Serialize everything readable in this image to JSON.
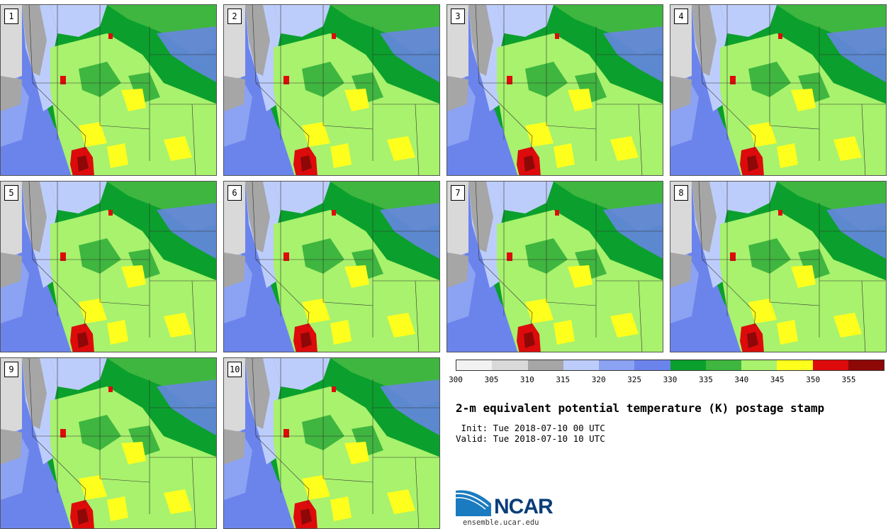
{
  "panels": [
    {
      "label": "1"
    },
    {
      "label": "2"
    },
    {
      "label": "3"
    },
    {
      "label": "4"
    },
    {
      "label": "5"
    },
    {
      "label": "6"
    },
    {
      "label": "7"
    },
    {
      "label": "8"
    },
    {
      "label": "9"
    },
    {
      "label": "10"
    }
  ],
  "colorbar": {
    "colors": [
      "#f2f2f2",
      "#d9d9d9",
      "#a6a6a6",
      "#bdcdfb",
      "#8ca2f2",
      "#6b84ec",
      "#0ba02d",
      "#3fb63f",
      "#a8f26d",
      "#ffff1e",
      "#dd0b0b",
      "#8e0808"
    ],
    "ticks": [
      "300",
      "305",
      "310",
      "315",
      "320",
      "325",
      "330",
      "335",
      "340",
      "345",
      "350",
      "355"
    ]
  },
  "title": "2-m equivalent potential temperature (K) postage stamp",
  "init": " Init: Tue 2018-07-10 00 UTC",
  "valid": "Valid: Tue 2018-07-10 10 UTC",
  "logo": {
    "text": "NCAR",
    "url": "ensemble.ucar.edu"
  }
}
